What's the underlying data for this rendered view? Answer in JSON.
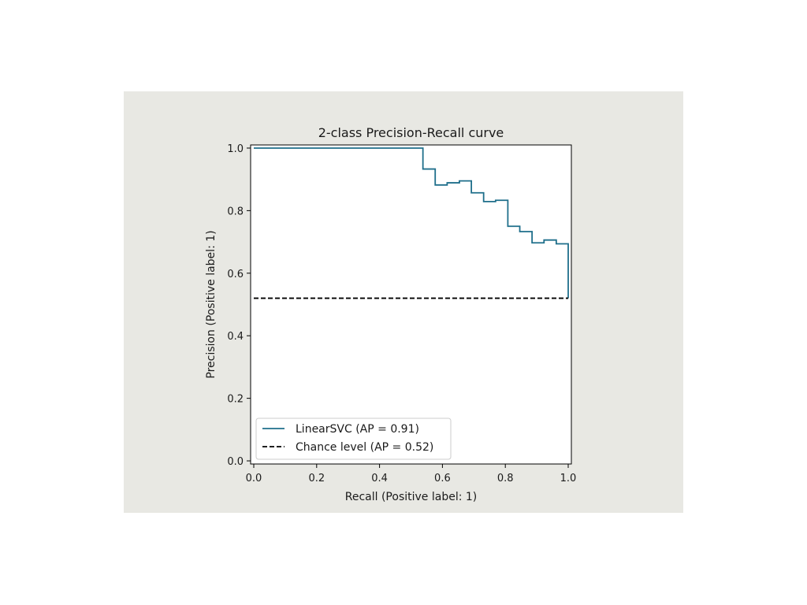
{
  "figure": {
    "background": "#e8e8e3"
  },
  "chart_data": {
    "type": "line",
    "title": "2-class Precision-Recall curve",
    "xlabel": "Recall (Positive label: 1)",
    "ylabel": "Precision (Positive label: 1)",
    "xlim": [
      -0.01,
      1.01
    ],
    "ylim": [
      -0.01,
      1.01
    ],
    "xticks": [
      0.0,
      0.2,
      0.4,
      0.6,
      0.8,
      1.0
    ],
    "xtick_labels": [
      "0.0",
      "0.2",
      "0.4",
      "0.6",
      "0.8",
      "1.0"
    ],
    "yticks": [
      0.0,
      0.2,
      0.4,
      0.6,
      0.8,
      1.0
    ],
    "ytick_labels": [
      "0.0",
      "0.2",
      "0.4",
      "0.6",
      "0.8",
      "1.0"
    ],
    "grid": false,
    "legend_position": "lower-left",
    "series": [
      {
        "name": "LinearSVC (AP = 0.91)",
        "color": "#1f6f8b",
        "style": "steps-post",
        "x": [
          0.0,
          0.538,
          0.538,
          0.577,
          0.577,
          0.615,
          0.615,
          0.654,
          0.654,
          0.692,
          0.692,
          0.731,
          0.731,
          0.769,
          0.769,
          0.808,
          0.808,
          0.846,
          0.846,
          0.885,
          0.885,
          0.923,
          0.923,
          0.962,
          0.962,
          1.0,
          1.0
        ],
        "y": [
          1.0,
          1.0,
          0.933,
          0.933,
          0.882,
          0.882,
          0.889,
          0.889,
          0.895,
          0.895,
          0.857,
          0.857,
          0.829,
          0.829,
          0.833,
          0.833,
          0.75,
          0.75,
          0.733,
          0.733,
          0.697,
          0.697,
          0.706,
          0.706,
          0.694,
          0.694,
          0.52
        ]
      },
      {
        "name": "Chance level (AP = 0.52)",
        "color": "#000000",
        "style": "dashed",
        "x": [
          0.0,
          1.0
        ],
        "y": [
          0.52,
          0.52
        ]
      }
    ]
  }
}
